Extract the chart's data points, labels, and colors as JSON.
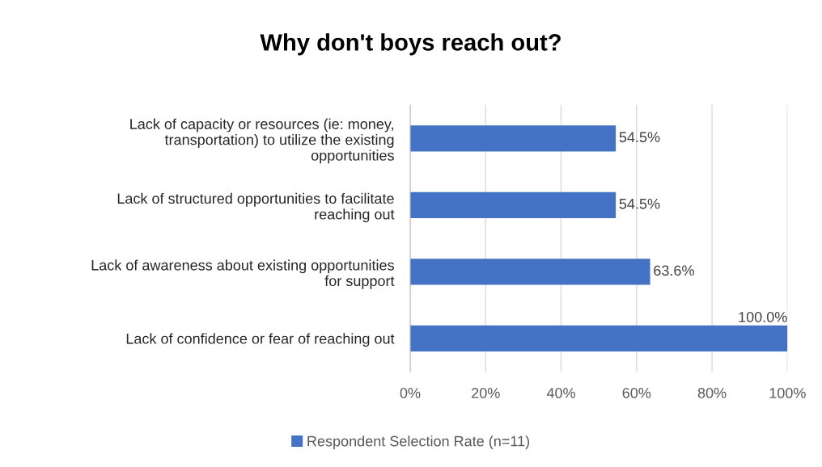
{
  "chart_data": {
    "type": "bar",
    "orientation": "horizontal",
    "title": "Why don't boys reach out?",
    "categories": [
      "Lack of capacity or resources (ie: money,\ntransportation) to utilize the existing\nopportunities",
      "Lack of structured opportunities to facilitate\nreaching out",
      "Lack of awareness about existing opportunities\nfor support",
      "Lack of confidence or fear of reaching out"
    ],
    "series": [
      {
        "name": "Respondent Selection Rate (n=11)",
        "color": "#4472c4",
        "values": [
          54.5,
          54.5,
          63.6,
          100.0
        ],
        "value_labels": [
          "54.5%",
          "54.5%",
          "63.6%",
          "100.0%"
        ]
      }
    ],
    "xlim": [
      0,
      100
    ],
    "xticks": [
      {
        "value": 0,
        "label": "0%"
      },
      {
        "value": 20,
        "label": "20%"
      },
      {
        "value": 40,
        "label": "40%"
      },
      {
        "value": 60,
        "label": "60%"
      },
      {
        "value": 80,
        "label": "80%"
      },
      {
        "value": 100,
        "label": "100%"
      }
    ],
    "grid": "x",
    "legend": "bottom"
  }
}
